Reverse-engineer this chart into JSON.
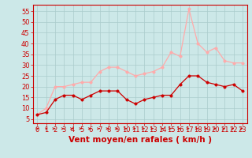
{
  "x": [
    0,
    1,
    2,
    3,
    4,
    5,
    6,
    7,
    8,
    9,
    10,
    11,
    12,
    13,
    14,
    15,
    16,
    17,
    18,
    19,
    20,
    21,
    22,
    23
  ],
  "wind_avg": [
    7,
    8,
    14,
    16,
    16,
    14,
    16,
    18,
    18,
    18,
    14,
    12,
    14,
    15,
    16,
    16,
    21,
    25,
    25,
    22,
    21,
    20,
    21,
    18
  ],
  "wind_gust": [
    7,
    10,
    20,
    20,
    21,
    22,
    22,
    27,
    29,
    29,
    27,
    25,
    26,
    27,
    29,
    36,
    34,
    56,
    40,
    36,
    38,
    32,
    31,
    31
  ],
  "bg_color": "#cce8e8",
  "grid_color": "#aacccc",
  "line_avg_color": "#cc0000",
  "line_gust_color": "#ffaaaa",
  "xlabel": "Vent moyen/en rafales ( km/h )",
  "ylim": [
    3,
    58
  ],
  "yticks": [
    5,
    10,
    15,
    20,
    25,
    30,
    35,
    40,
    45,
    50,
    55
  ],
  "xticks": [
    0,
    1,
    2,
    3,
    4,
    5,
    6,
    7,
    8,
    9,
    10,
    11,
    12,
    13,
    14,
    15,
    16,
    17,
    18,
    19,
    20,
    21,
    22,
    23
  ],
  "xlabel_color": "#cc0000",
  "xlabel_fontsize": 7.5,
  "tick_fontsize": 6,
  "tick_color": "#cc0000",
  "spine_color": "#cc0000",
  "marker_size": 2.5,
  "line_width": 0.9,
  "arrow_angles_deg": [
    45,
    45,
    0,
    0,
    0,
    0,
    0,
    0,
    0,
    0,
    0,
    0,
    0,
    0,
    45,
    0,
    0,
    0,
    0,
    0,
    0,
    0,
    0,
    0
  ]
}
